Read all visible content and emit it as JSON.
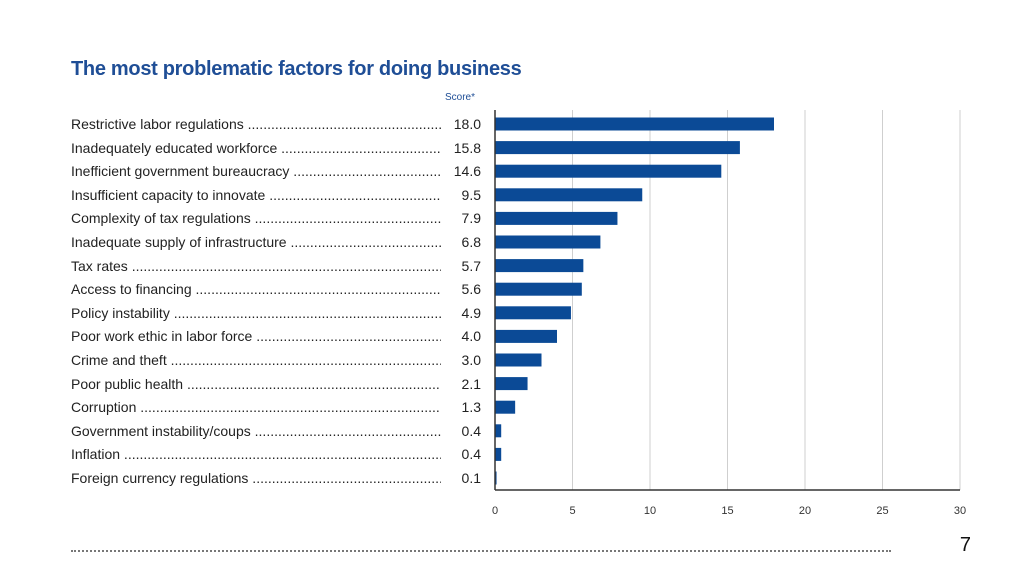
{
  "page": {
    "number": "7"
  },
  "chart_data": {
    "type": "bar",
    "orientation": "horizontal",
    "title": "The most problematic factors for doing business",
    "xlabel": "Score*",
    "categories": [
      "Restrictive labor regulations",
      "Inadequately educated workforce",
      "Inefficient government bureaucracy",
      "Insufficient capacity to innovate",
      "Complexity of tax regulations",
      "Inadequate supply of infrastructure",
      "Tax rates",
      "Access to financing",
      "Policy instability",
      "Poor work ethic in labor force",
      "Crime and theft",
      "Poor public health",
      "Corruption",
      "Government instability/coups",
      "Inflation",
      "Foreign currency regulations"
    ],
    "values": [
      18.0,
      15.8,
      14.6,
      9.5,
      7.9,
      6.8,
      5.7,
      5.6,
      4.9,
      4.0,
      3.0,
      2.1,
      1.3,
      0.4,
      0.4,
      0.1
    ],
    "value_labels": [
      "18.0",
      "15.8",
      "14.6",
      "9.5",
      "7.9",
      "6.8",
      "5.7",
      "5.6",
      "4.9",
      "4.0",
      "3.0",
      "2.1",
      "1.3",
      "0.4",
      "0.4",
      "0.1"
    ],
    "xlim": [
      0,
      30
    ],
    "xticks": [
      "0",
      "5",
      "10",
      "15",
      "20",
      "25",
      "30"
    ],
    "grid": true,
    "bar_color": "#0b4a96"
  }
}
